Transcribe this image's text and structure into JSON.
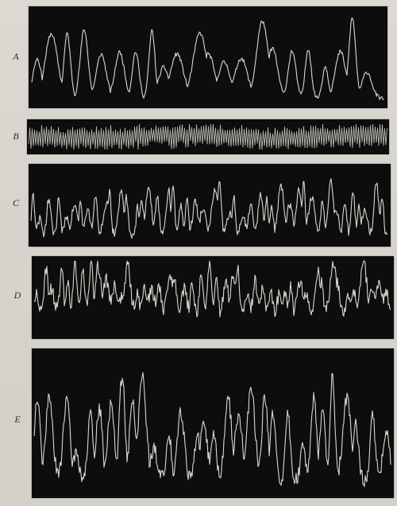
{
  "figure": {
    "panels": [
      {
        "label": "A",
        "seed": 11,
        "style": "slow"
      },
      {
        "label": "B",
        "seed": 23,
        "style": "dense"
      },
      {
        "label": "C",
        "seed": 37,
        "style": "mixed"
      },
      {
        "label": "D",
        "seed": 53,
        "style": "irregular"
      },
      {
        "label": "E",
        "seed": 71,
        "style": "large"
      }
    ],
    "colors": {
      "background": "#d9d6cf",
      "panel": "#0d0d0d",
      "trace": "#ece9e0"
    }
  }
}
